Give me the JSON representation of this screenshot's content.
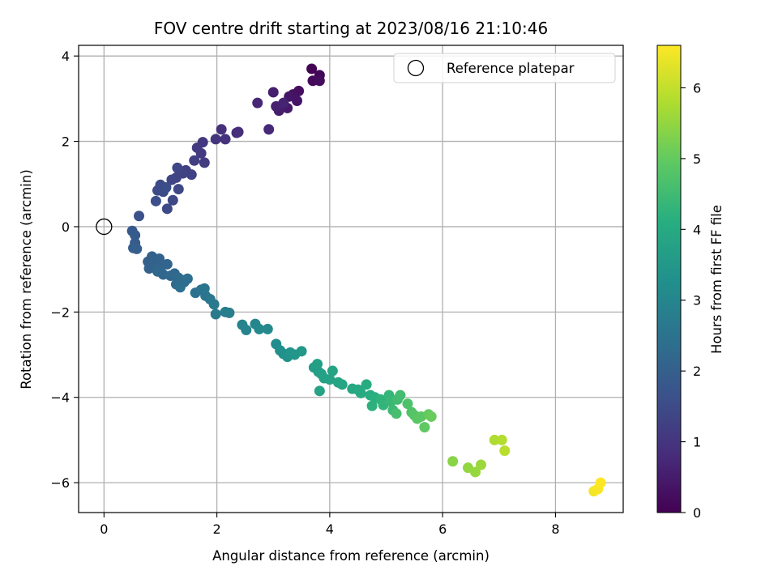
{
  "chart_data": {
    "type": "scatter",
    "title": "FOV centre drift starting at 2023/08/16 21:10:46",
    "xlabel": "Angular distance from reference (arcmin)",
    "ylabel": "Rotation from reference (arcmin)",
    "xlim": [
      -0.45,
      9.2
    ],
    "ylim": [
      -6.7,
      4.25
    ],
    "xticks": [
      0,
      2,
      4,
      6,
      8
    ],
    "yticks": [
      -6,
      -4,
      -2,
      0,
      2,
      4
    ],
    "xtick_labels": [
      "0",
      "2",
      "4",
      "6",
      "8"
    ],
    "ytick_labels": [
      "−6",
      "−4",
      "−2",
      "0",
      "2",
      "4"
    ],
    "grid": true,
    "colormap": "viridis",
    "colorbar": {
      "label": "Hours from first FF file",
      "range": [
        0,
        6.6
      ],
      "ticks": [
        0,
        1,
        2,
        3,
        4,
        5,
        6
      ],
      "tick_labels": [
        "0",
        "1",
        "2",
        "3",
        "4",
        "5",
        "6"
      ]
    },
    "legend": {
      "position": "top-right",
      "entries": [
        "Reference platepar"
      ]
    },
    "reference_point": {
      "x": 0,
      "y": 0
    },
    "points": [
      [
        3.68,
        3.7,
        0.05
      ],
      [
        3.82,
        3.55,
        0.1
      ],
      [
        3.7,
        3.42,
        0.15
      ],
      [
        3.82,
        3.42,
        0.2
      ],
      [
        3.45,
        3.18,
        0.25
      ],
      [
        3.35,
        3.1,
        0.3
      ],
      [
        3.42,
        2.95,
        0.35
      ],
      [
        3.28,
        3.05,
        0.4
      ],
      [
        3.25,
        2.78,
        0.45
      ],
      [
        3.1,
        2.72,
        0.5
      ],
      [
        3.0,
        3.15,
        0.55
      ],
      [
        3.05,
        2.82,
        0.6
      ],
      [
        3.18,
        2.9,
        0.65
      ],
      [
        2.72,
        2.9,
        0.7
      ],
      [
        2.92,
        2.28,
        0.75
      ],
      [
        2.35,
        2.2,
        0.8
      ],
      [
        2.38,
        2.22,
        0.85
      ],
      [
        2.08,
        2.28,
        0.9
      ],
      [
        2.15,
        2.05,
        0.95
      ],
      [
        1.98,
        2.05,
        1.0
      ],
      [
        1.75,
        1.98,
        1.05
      ],
      [
        1.65,
        1.85,
        1.1
      ],
      [
        1.72,
        1.72,
        1.12
      ],
      [
        1.78,
        1.5,
        1.15
      ],
      [
        1.6,
        1.55,
        1.2
      ],
      [
        1.45,
        1.32,
        1.25
      ],
      [
        1.55,
        1.22,
        1.28
      ],
      [
        1.4,
        1.25,
        1.3
      ],
      [
        1.28,
        1.15,
        1.33
      ],
      [
        1.2,
        1.1,
        1.36
      ],
      [
        1.3,
        1.38,
        1.38
      ],
      [
        1.32,
        0.88,
        1.4
      ],
      [
        1.22,
        0.62,
        1.43
      ],
      [
        1.12,
        0.42,
        1.46
      ],
      [
        1.05,
        0.82,
        1.48
      ],
      [
        1.0,
        0.98,
        1.5
      ],
      [
        0.95,
        0.85,
        1.52
      ],
      [
        1.1,
        0.92,
        1.55
      ],
      [
        0.92,
        0.6,
        1.58
      ],
      [
        0.62,
        0.25,
        1.62
      ],
      [
        0.5,
        -0.1,
        1.8
      ],
      [
        0.55,
        -0.2,
        1.85
      ],
      [
        0.55,
        -0.38,
        1.9
      ],
      [
        0.52,
        -0.5,
        1.95
      ],
      [
        0.58,
        -0.52,
        1.98
      ],
      [
        0.78,
        -0.82,
        2.0
      ],
      [
        0.85,
        -0.7,
        2.02
      ],
      [
        0.8,
        -0.98,
        2.05
      ],
      [
        0.88,
        -0.9,
        2.08
      ],
      [
        0.98,
        -0.75,
        2.1
      ],
      [
        1.02,
        -0.92,
        2.12
      ],
      [
        1.12,
        -0.88,
        2.15
      ],
      [
        0.95,
        -1.05,
        2.18
      ],
      [
        1.05,
        -1.12,
        2.2
      ],
      [
        1.18,
        -1.15,
        2.22
      ],
      [
        1.25,
        -1.1,
        2.25
      ],
      [
        1.32,
        -1.2,
        2.28
      ],
      [
        1.28,
        -1.35,
        2.3
      ],
      [
        1.38,
        -1.25,
        2.32
      ],
      [
        1.42,
        -1.3,
        2.35
      ],
      [
        1.48,
        -1.22,
        2.38
      ],
      [
        1.35,
        -1.42,
        2.4
      ],
      [
        1.62,
        -1.55,
        2.45
      ],
      [
        1.72,
        -1.48,
        2.5
      ],
      [
        1.78,
        -1.45,
        2.52
      ],
      [
        1.8,
        -1.62,
        2.55
      ],
      [
        1.88,
        -1.7,
        2.6
      ],
      [
        1.95,
        -1.82,
        2.65
      ],
      [
        1.98,
        -2.05,
        2.7
      ],
      [
        2.15,
        -2.0,
        2.75
      ],
      [
        2.22,
        -2.02,
        2.8
      ],
      [
        2.45,
        -2.3,
        2.9
      ],
      [
        2.52,
        -2.42,
        2.95
      ],
      [
        2.68,
        -2.28,
        3.0
      ],
      [
        2.75,
        -2.4,
        3.05
      ],
      [
        2.9,
        -2.4,
        3.1
      ],
      [
        3.05,
        -2.75,
        3.2
      ],
      [
        3.12,
        -2.9,
        3.25
      ],
      [
        3.18,
        -2.98,
        3.3
      ],
      [
        3.25,
        -3.05,
        3.35
      ],
      [
        3.3,
        -2.95,
        3.4
      ],
      [
        3.38,
        -3.0,
        3.45
      ],
      [
        3.5,
        -2.92,
        3.5
      ],
      [
        3.72,
        -3.3,
        3.6
      ],
      [
        3.8,
        -3.4,
        3.65
      ],
      [
        3.78,
        -3.22,
        3.7
      ],
      [
        3.85,
        -3.45,
        3.72
      ],
      [
        3.9,
        -3.55,
        3.75
      ],
      [
        4.0,
        -3.58,
        3.78
      ],
      [
        4.05,
        -3.38,
        3.8
      ],
      [
        3.82,
        -3.85,
        3.82
      ],
      [
        4.15,
        -3.65,
        3.85
      ],
      [
        4.22,
        -3.7,
        3.88
      ],
      [
        4.4,
        -3.8,
        3.9
      ],
      [
        4.5,
        -3.82,
        3.95
      ],
      [
        4.55,
        -3.9,
        4.0
      ],
      [
        4.65,
        -3.7,
        4.05
      ],
      [
        4.72,
        -3.95,
        4.1
      ],
      [
        4.8,
        -4.0,
        4.15
      ],
      [
        4.75,
        -4.2,
        4.2
      ],
      [
        4.9,
        -4.05,
        4.25
      ],
      [
        4.95,
        -4.18,
        4.3
      ],
      [
        5.05,
        -3.95,
        4.35
      ],
      [
        5.08,
        -4.1,
        4.4
      ],
      [
        5.12,
        -4.3,
        4.45
      ],
      [
        5.2,
        -4.05,
        4.5
      ],
      [
        5.25,
        -3.95,
        4.55
      ],
      [
        5.18,
        -4.38,
        4.6
      ],
      [
        5.38,
        -4.15,
        4.7
      ],
      [
        5.45,
        -4.35,
        4.75
      ],
      [
        5.5,
        -4.42,
        4.8
      ],
      [
        5.55,
        -4.5,
        4.85
      ],
      [
        5.62,
        -4.45,
        4.9
      ],
      [
        5.68,
        -4.7,
        4.95
      ],
      [
        5.75,
        -4.4,
        5.0
      ],
      [
        5.8,
        -4.45,
        5.05
      ],
      [
        6.18,
        -5.5,
        5.4
      ],
      [
        6.45,
        -5.65,
        5.5
      ],
      [
        6.58,
        -5.75,
        5.55
      ],
      [
        6.68,
        -5.58,
        5.6
      ],
      [
        6.92,
        -5.0,
        5.8
      ],
      [
        7.05,
        -5.0,
        5.85
      ],
      [
        7.1,
        -5.25,
        5.9
      ],
      [
        8.68,
        -6.2,
        6.5
      ],
      [
        8.75,
        -6.15,
        6.55
      ],
      [
        8.8,
        -6.0,
        6.6
      ]
    ]
  }
}
